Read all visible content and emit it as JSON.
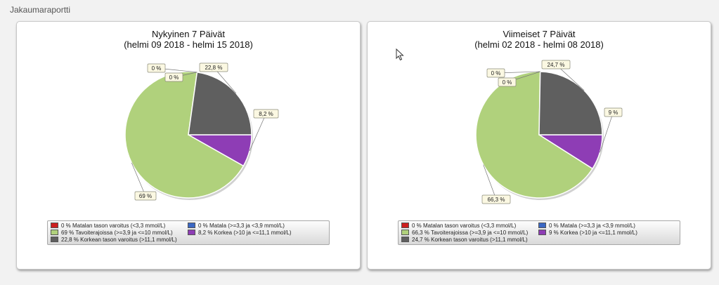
{
  "page": {
    "title": "Jakaumaraportti"
  },
  "chart_data": [
    {
      "type": "pie",
      "title": "Nykyinen 7 Päivät",
      "subtitle": "(helmi 09 2018 - helmi 15 2018)",
      "slices": [
        {
          "label": "Matalan tason varoitus (<3,3 mmol/L)",
          "value": 0,
          "value_label": "0 %",
          "color": "#cc1f1f"
        },
        {
          "label": "Matala (>=3,3 ja <3,9 mmol/L)",
          "value": 0,
          "value_label": "0 %",
          "color": "#3b68c4"
        },
        {
          "label": "Tavoiterajoissa (>=3,9 ja <=10 mmol/L)",
          "value": 69,
          "value_label": "69 %",
          "color": "#b0d17c"
        },
        {
          "label": "Korkea (>10 ja <=11,1 mmol/L)",
          "value": 8.2,
          "value_label": "8,2 %",
          "color": "#8e3db5"
        },
        {
          "label": "Korkean tason varoitus (>11,1 mmol/L)",
          "value": 22.8,
          "value_label": "22,8 %",
          "color": "#5f5f5f"
        }
      ],
      "legend": [
        {
          "text": "0 % Matalan tason varoitus (<3,3 mmol/L)",
          "color": "#cc1f1f"
        },
        {
          "text": "0 % Matala (>=3,3 ja <3,9 mmol/L)",
          "color": "#3b68c4"
        },
        {
          "text": "69 % Tavoiterajoissa (>=3,9 ja <=10 mmol/L)",
          "color": "#b0d17c"
        },
        {
          "text": "8,2 %  Korkea (>10 ja <=11,1 mmol/L)",
          "color": "#8e3db5"
        },
        {
          "text": "22,8 %  Korkean tason varoitus (>11,1 mmol/L)",
          "color": "#5f5f5f"
        }
      ]
    },
    {
      "type": "pie",
      "title": "Viimeiset 7 Päivät",
      "subtitle": "(helmi 02 2018 - helmi 08 2018)",
      "slices": [
        {
          "label": "Matalan tason varoitus (<3,3 mmol/L)",
          "value": 0,
          "value_label": "0 %",
          "color": "#cc1f1f"
        },
        {
          "label": "Matala (>=3,3 ja <3,9 mmol/L)",
          "value": 0,
          "value_label": "0 %",
          "color": "#3b68c4"
        },
        {
          "label": "Tavoiterajoissa (>=3,9 ja <=10 mmol/L)",
          "value": 66.3,
          "value_label": "66,3 %",
          "color": "#b0d17c"
        },
        {
          "label": "Korkea (>10 ja <=11,1 mmol/L)",
          "value": 9,
          "value_label": "9 %",
          "color": "#8e3db5"
        },
        {
          "label": "Korkean tason varoitus (>11,1 mmol/L)",
          "value": 24.7,
          "value_label": "24,7 %",
          "color": "#5f5f5f"
        }
      ],
      "legend": [
        {
          "text": "0 % Matalan tason varoitus (<3,3 mmol/L)",
          "color": "#cc1f1f"
        },
        {
          "text": "0 % Matala (>=3,3 ja <3,9 mmol/L)",
          "color": "#3b68c4"
        },
        {
          "text": "66,3 % Tavoiterajoissa (>=3,9 ja <=10 mmol/L)",
          "color": "#b0d17c"
        },
        {
          "text": "9 %  Korkea (>10 ja <=11,1 mmol/L)",
          "color": "#8e3db5"
        },
        {
          "text": "24,7 %  Korkean tason varoitus (>11,1 mmol/L)",
          "color": "#5f5f5f"
        }
      ]
    }
  ]
}
